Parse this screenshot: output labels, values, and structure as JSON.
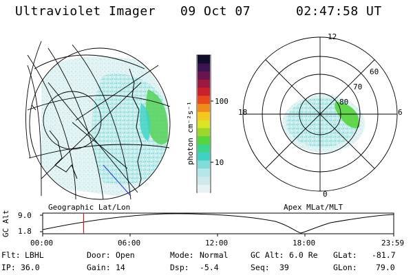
{
  "header": {
    "title": "Ultraviolet Imager",
    "date": "09 Oct 07",
    "time": "02:47:58 UT"
  },
  "colorbar": {
    "unit_label": "photon cm⁻²s⁻¹",
    "tick_100": "100",
    "tick_10": "10",
    "colors": [
      "#e8f4f4",
      "#cfe8ec",
      "#b4e6ea",
      "#7fdcd8",
      "#3fd2c4",
      "#3bd68c",
      "#58d43c",
      "#9cd82a",
      "#d8e424",
      "#f4c81c",
      "#f08a18",
      "#e8481c",
      "#c8202c",
      "#9c1840",
      "#6a1450",
      "#3a1450",
      "#100c2c"
    ]
  },
  "left_panel": {
    "caption": "Geographic Lat/Lon"
  },
  "right_panel": {
    "caption": "Apex MLat/MLT",
    "mlt_12": "12",
    "mlt_18": "18",
    "mlt_6": "6",
    "mlt_0": "0",
    "lat_60": "60",
    "lat_70": "70",
    "lat_80": "80"
  },
  "altitude_plot": {
    "ylabel": "GC Alt",
    "y_max": "9.0",
    "y_min": "1.8",
    "x_ticks": [
      "00:00",
      "06:00",
      "12:00",
      "18:00",
      "23:59"
    ],
    "current_time_marker_hours": 2.8
  },
  "info": {
    "flt_label": "Flt:",
    "flt_value": "LBHL",
    "ip_label": "IP:",
    "ip_value": "36.0",
    "door_label": "Door:",
    "door_value": "Open",
    "gain_label": "Gain:",
    "gain_value": "14",
    "mode_label": "Mode:",
    "mode_value": "Normal",
    "dsp_label": "Dsp:",
    "dsp_value": "-5.4",
    "gcalt_label": "GC Alt:",
    "gcalt_value": "6.0 Re",
    "seq_label": "Seq:",
    "seq_value": "39",
    "glat_label": "GLat:",
    "glat_value": "-81.7",
    "glon_label": "GLon:",
    "glon_value": "79.0"
  }
}
